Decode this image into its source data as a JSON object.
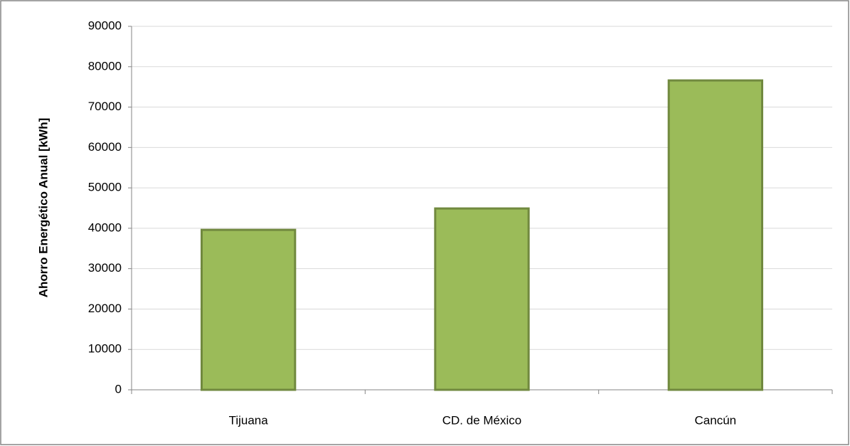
{
  "chart_data": {
    "type": "bar",
    "y_label": "Ahorro Energético Anual [kWh]",
    "categories": [
      "Tijuana",
      "CD. de México",
      "Cancún"
    ],
    "values": [
      39600,
      44900,
      76600
    ],
    "color": "#9bbb59",
    "edge_color": "#71893f",
    "ylim": [
      0,
      90000
    ],
    "yticks": [
      0,
      10000,
      20000,
      30000,
      40000,
      50000,
      60000,
      70000,
      80000,
      90000
    ],
    "grid": true
  }
}
